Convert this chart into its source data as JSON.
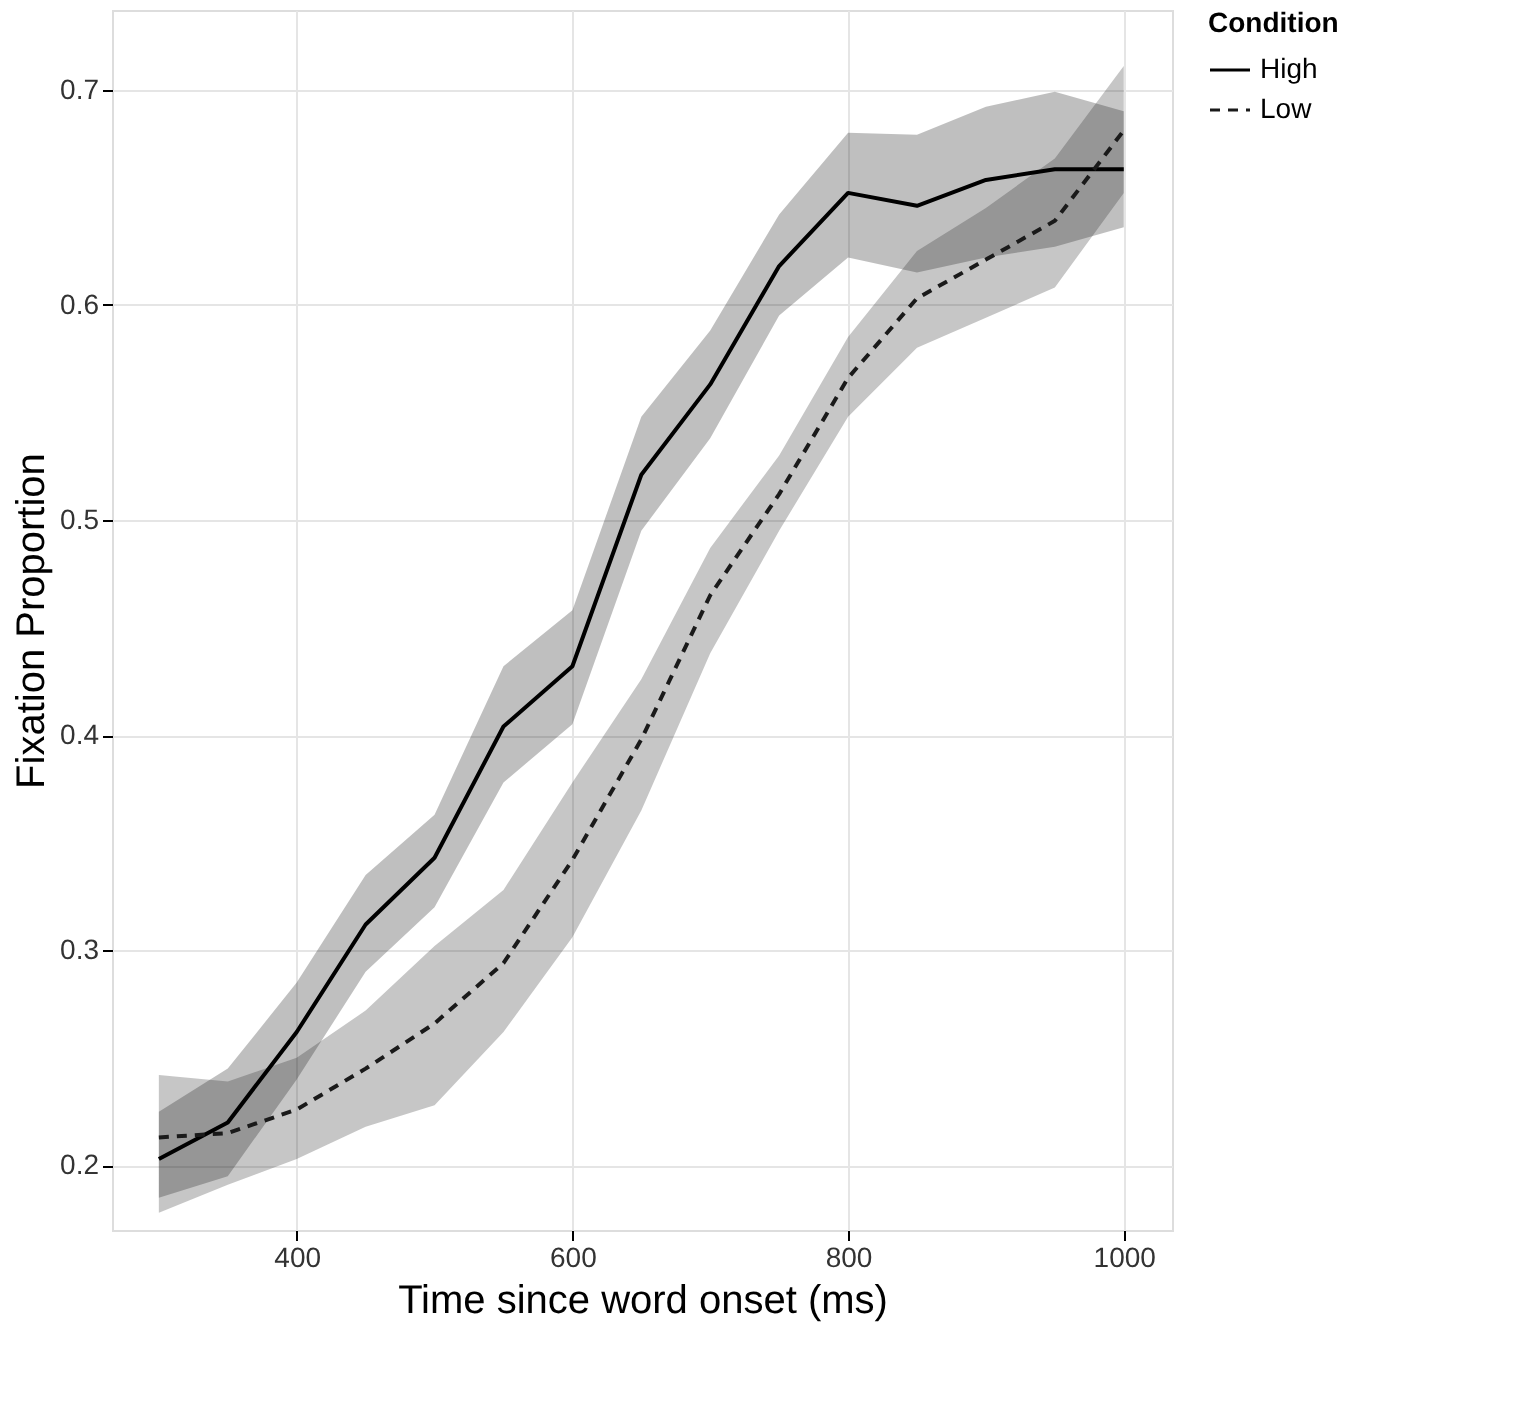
{
  "chart_data": {
    "type": "line",
    "xlabel": "Time since word onset (ms)",
    "ylabel": "Fixation Proportion",
    "legend_title": "Condition",
    "legend": "right",
    "grid": true,
    "x": [
      300,
      350,
      400,
      450,
      500,
      550,
      600,
      650,
      700,
      750,
      800,
      850,
      900,
      950,
      1000
    ],
    "xlim": [
      266,
      1035
    ],
    "xticks": [
      400,
      600,
      800,
      1000
    ],
    "ylim": [
      0.17,
      0.737
    ],
    "yticks": [
      0.2,
      0.3,
      0.4,
      0.5,
      0.6,
      0.7
    ],
    "series": [
      {
        "name": "High",
        "color": "#000000",
        "line_style": "solid",
        "values": [
          0.203,
          0.22,
          0.262,
          0.312,
          0.343,
          0.404,
          0.432,
          0.521,
          0.563,
          0.618,
          0.652,
          0.646,
          0.658,
          0.663,
          0.663
        ],
        "lower": [
          0.185,
          0.195,
          0.24,
          0.29,
          0.32,
          0.378,
          0.405,
          0.495,
          0.538,
          0.595,
          0.622,
          0.615,
          0.622,
          0.627,
          0.636
        ],
        "upper": [
          0.225,
          0.245,
          0.285,
          0.335,
          0.363,
          0.432,
          0.458,
          0.548,
          0.588,
          0.642,
          0.68,
          0.679,
          0.692,
          0.699,
          0.69
        ]
      },
      {
        "name": "Low",
        "color": "#1a1a1a",
        "line_style": "dashed",
        "values": [
          0.213,
          0.215,
          0.226,
          0.245,
          0.266,
          0.294,
          0.342,
          0.398,
          0.465,
          0.512,
          0.566,
          0.603,
          0.621,
          0.639,
          0.681
        ],
        "lower": [
          0.178,
          0.191,
          0.203,
          0.218,
          0.228,
          0.262,
          0.306,
          0.365,
          0.438,
          0.495,
          0.548,
          0.58,
          0.594,
          0.608,
          0.652
        ],
        "upper": [
          0.242,
          0.239,
          0.25,
          0.272,
          0.302,
          0.328,
          0.378,
          0.426,
          0.487,
          0.53,
          0.585,
          0.625,
          0.645,
          0.668,
          0.711
        ]
      }
    ]
  }
}
